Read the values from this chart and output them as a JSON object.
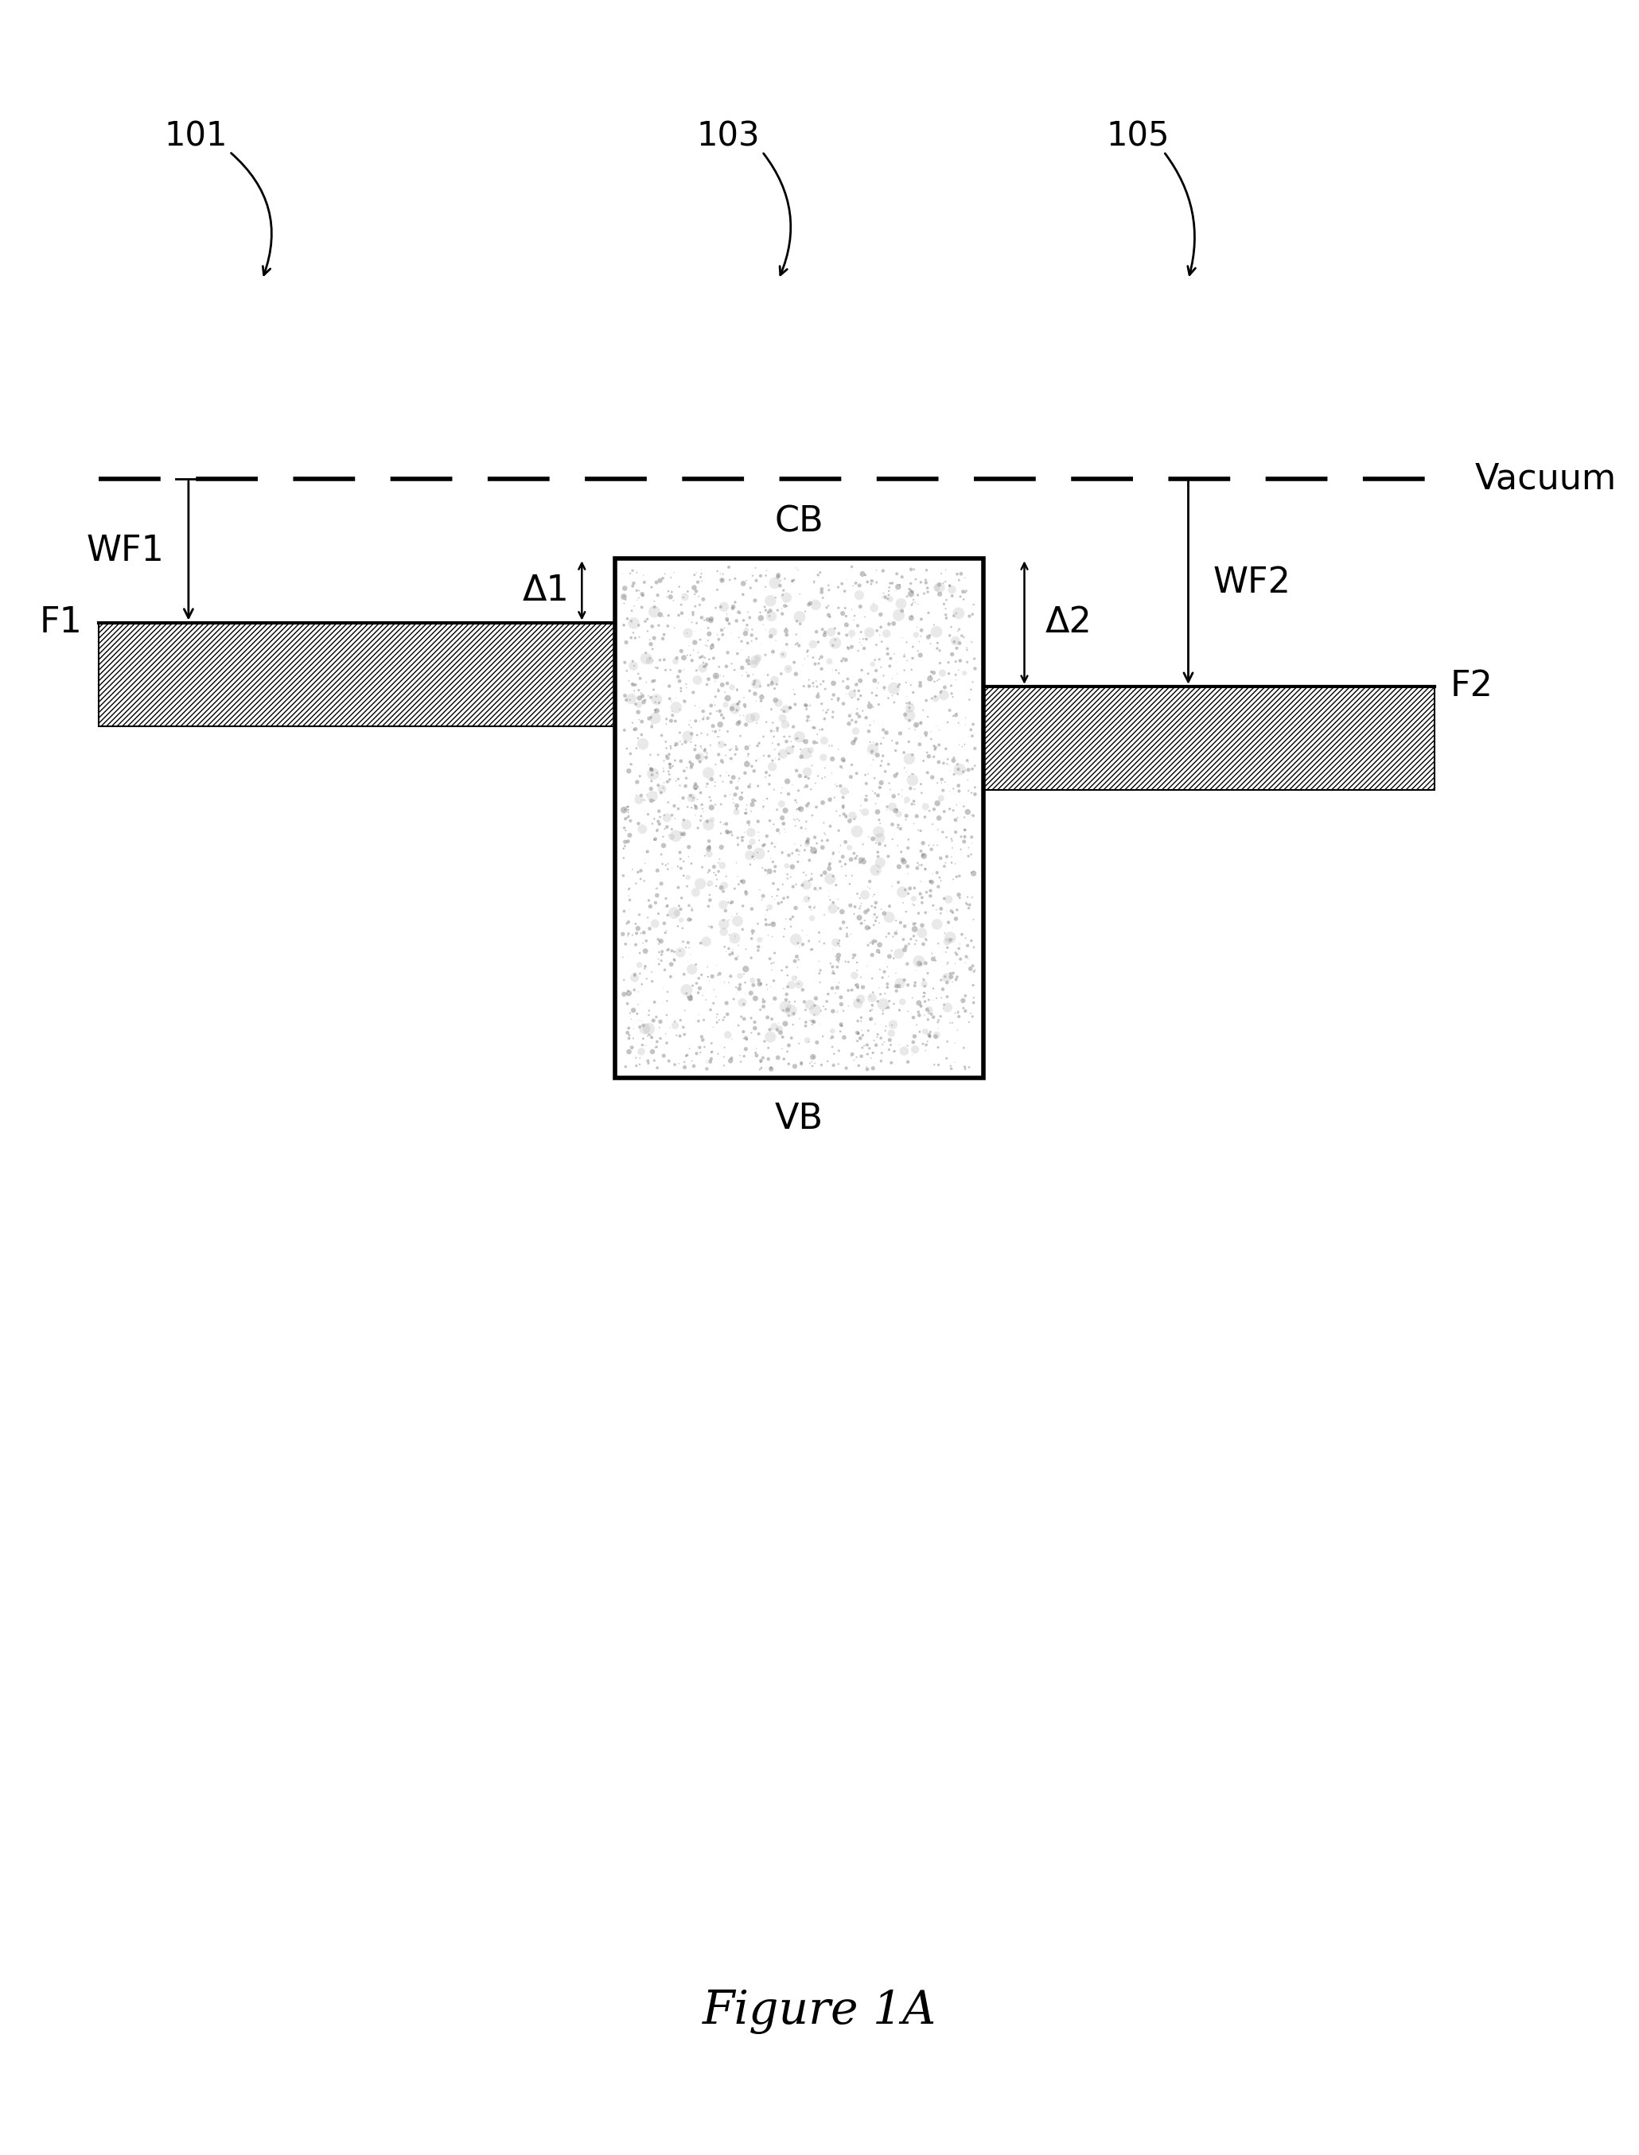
{
  "bg_color": "#ffffff",
  "fig_width": 20.6,
  "fig_height": 27.09,
  "label_101": "101",
  "label_103": "103",
  "label_105": "105",
  "label_vacuum": "Vacuum",
  "label_wf1": "WF1",
  "label_wf2": "WF2",
  "label_delta1": "Δ1",
  "label_delta2": "Δ2",
  "label_f1": "F1",
  "label_f2": "F2",
  "label_cb": "CB",
  "label_vb": "VB",
  "label_figure": "Figure 1A",
  "font_size_labels": 32,
  "font_size_ref": 30,
  "font_size_figure": 42
}
